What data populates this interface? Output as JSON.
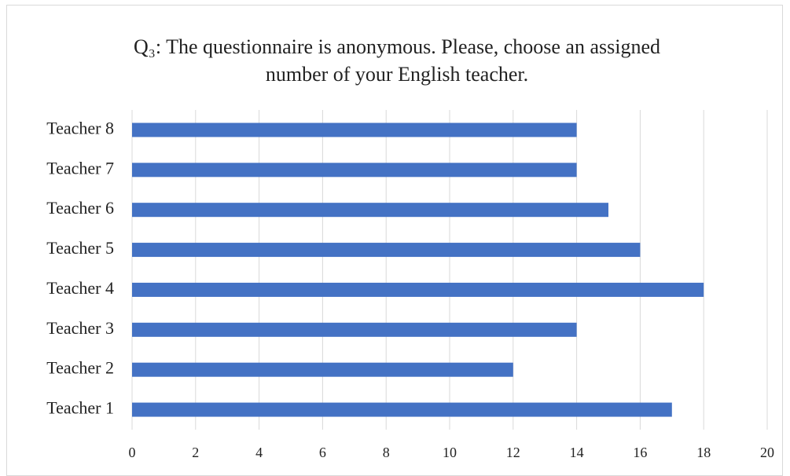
{
  "chart_data": {
    "type": "bar",
    "orientation": "horizontal",
    "title": "Q₃: The questionnaire is anonymous. Please, choose an assigned number of your English teacher.",
    "categories": [
      "Teacher 1",
      "Teacher 2",
      "Teacher 3",
      "Teacher 4",
      "Teacher 5",
      "Teacher 6",
      "Teacher 7",
      "Teacher 8"
    ],
    "values": [
      17,
      12,
      14,
      18,
      16,
      15,
      14,
      14
    ],
    "color": "#4472c4",
    "xlim": [
      0,
      20
    ],
    "xticks": [
      0,
      2,
      4,
      6,
      8,
      10,
      12,
      14,
      16,
      18,
      20
    ],
    "grid": true
  }
}
